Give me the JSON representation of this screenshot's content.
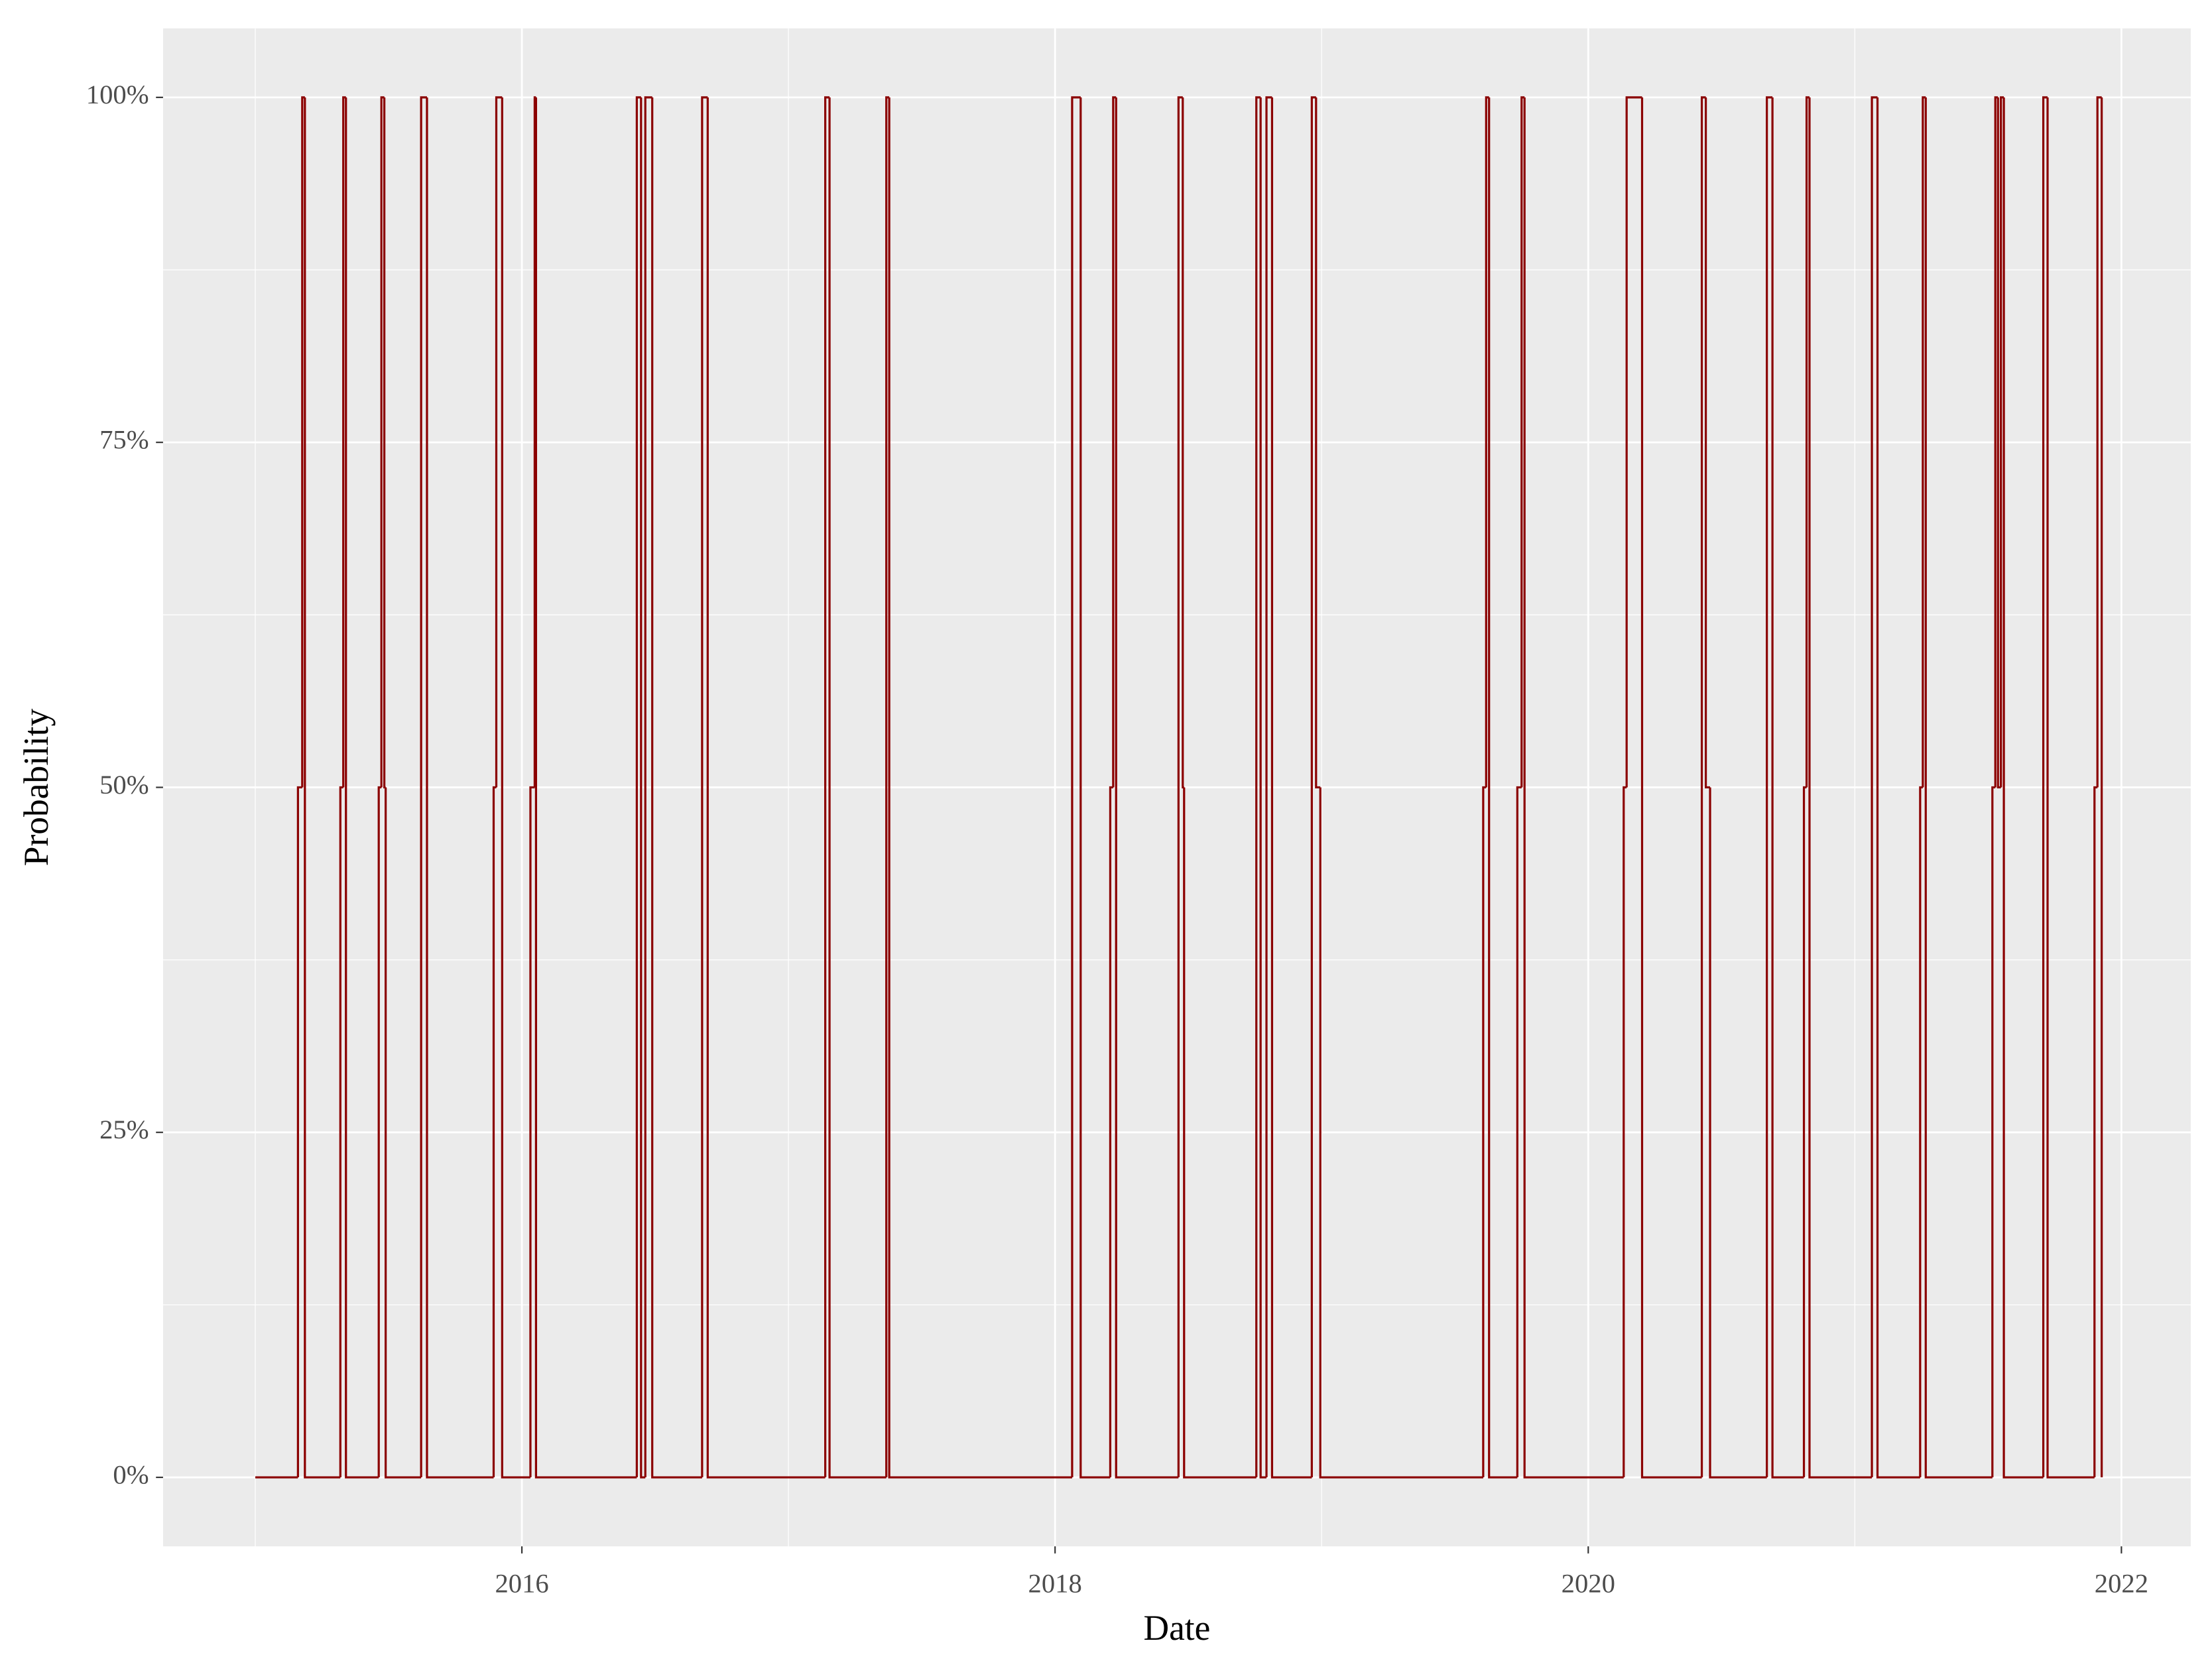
{
  "chart_data": {
    "type": "line",
    "x_label": "Date",
    "y_label": "Probability",
    "x": [
      2015.0,
      2015.16,
      2015.176,
      2015.186,
      2015.319,
      2015.33,
      2015.34,
      2015.463,
      2015.473,
      2015.484,
      2015.489,
      2015.622,
      2015.644,
      2015.894,
      2015.904,
      2015.926,
      2016.032,
      2016.048,
      2016.053,
      2016.431,
      2016.447,
      2016.463,
      2016.489,
      2016.676,
      2016.697,
      2017.138,
      2017.154,
      2017.367,
      2017.378,
      2018.064,
      2018.096,
      2018.207,
      2018.218,
      2018.229,
      2018.463,
      2018.479,
      2018.484,
      2018.755,
      2018.771,
      2018.793,
      2018.814,
      2018.963,
      2018.979,
      2018.995,
      2019.606,
      2019.617,
      2019.628,
      2019.734,
      2019.75,
      2019.761,
      2020.133,
      2020.144,
      2020.202,
      2020.426,
      2020.441,
      2020.457,
      2020.67,
      2020.691,
      2020.809,
      2020.819,
      2020.83,
      2021.064,
      2021.085,
      2021.245,
      2021.255,
      2021.266,
      2021.516,
      2021.527,
      2021.537,
      2021.548,
      2021.559,
      2021.707,
      2021.723,
      2021.899,
      2021.91,
      2021.926
    ],
    "series": [
      {
        "color": "#8b0000",
        "values": [
          0,
          50,
          100,
          0,
          50,
          100,
          0,
          50,
          100,
          50,
          0,
          100,
          0,
          50,
          100,
          0,
          50,
          100,
          0,
          100,
          0,
          100,
          0,
          100,
          0,
          100,
          0,
          100,
          0,
          100,
          0,
          50,
          100,
          0,
          100,
          50,
          0,
          100,
          0,
          100,
          0,
          100,
          50,
          0,
          50,
          100,
          0,
          50,
          100,
          0,
          50,
          100,
          0,
          100,
          50,
          0,
          100,
          0,
          50,
          100,
          0,
          100,
          0,
          50,
          100,
          0,
          50,
          100,
          50,
          100,
          0,
          100,
          0,
          50,
          100,
          0
        ]
      }
    ],
    "xlim": [
      2014.654,
      2022.26
    ],
    "ylim": [
      -5,
      105
    ],
    "xticks": [
      2016,
      2018,
      2020,
      2022
    ],
    "yticks": [
      {
        "value": 0,
        "label": "0%"
      },
      {
        "value": 25,
        "label": "25%"
      },
      {
        "value": 50,
        "label": "50%"
      },
      {
        "value": 75,
        "label": "75%"
      },
      {
        "value": 100,
        "label": "100%"
      }
    ],
    "grid": true
  }
}
